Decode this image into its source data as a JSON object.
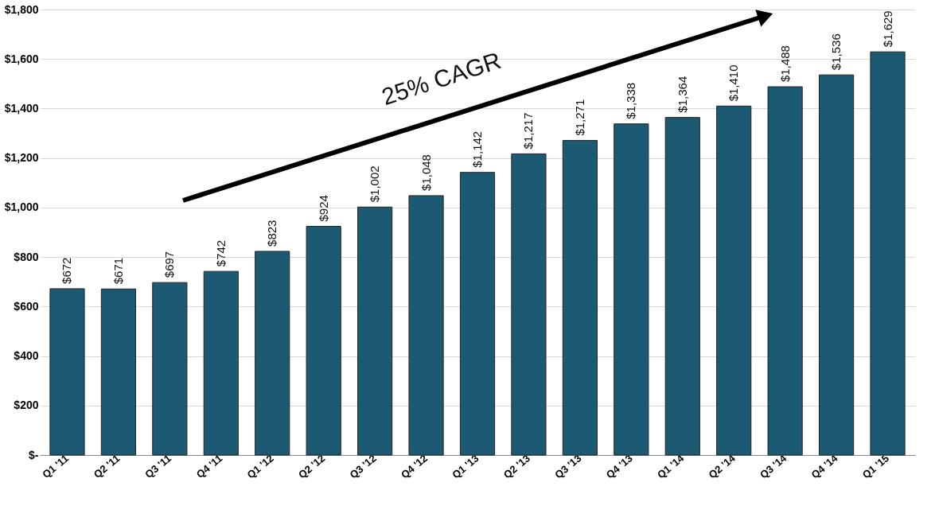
{
  "chart_data": {
    "type": "bar",
    "categories": [
      "Q1 '11",
      "Q2 '11",
      "Q3 '11",
      "Q4 '11",
      "Q1 '12",
      "Q2 '12",
      "Q3 '12",
      "Q4 '12",
      "Q1 '13",
      "Q2 '13",
      "Q3 '13",
      "Q4 '13",
      "Q1 '14",
      "Q2 '14",
      "Q3 '14",
      "Q4 '14",
      "Q1 '15"
    ],
    "values": [
      672,
      671,
      697,
      742,
      823,
      924,
      1002,
      1048,
      1142,
      1217,
      1271,
      1338,
      1364,
      1410,
      1488,
      1536,
      1629
    ],
    "value_labels": [
      "$672",
      "$671",
      "$697",
      "$742",
      "$823",
      "$924",
      "$1,002",
      "$1,048",
      "$1,142",
      "$1,217",
      "$1,271",
      "$1,338",
      "$1,364",
      "$1,410",
      "$1,488",
      "$1,536",
      "$1,629"
    ],
    "color": "#1c5a74",
    "ylim": [
      0,
      1800
    ],
    "yticks": [
      {
        "value": 0,
        "label": "$-"
      },
      {
        "value": 200,
        "label": "$200"
      },
      {
        "value": 400,
        "label": "$400"
      },
      {
        "value": 600,
        "label": "$600"
      },
      {
        "value": 800,
        "label": "$800"
      },
      {
        "value": 1000,
        "label": "$1,000"
      },
      {
        "value": 1200,
        "label": "$1,200"
      },
      {
        "value": 1400,
        "label": "$1,400"
      },
      {
        "value": 1600,
        "label": "$1,600"
      },
      {
        "value": 1800,
        "label": "$1,800"
      }
    ],
    "grid": "y",
    "annotations": [
      "25% CAGR"
    ]
  }
}
